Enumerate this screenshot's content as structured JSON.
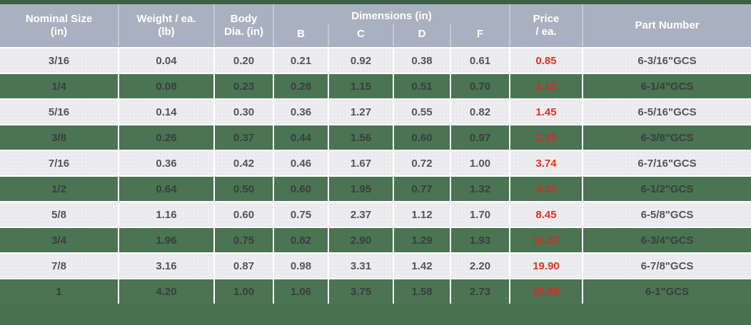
{
  "colors": {
    "accent_green": "#4a7452",
    "header_gray_blue": "#a9b1c0",
    "price_red": "#e53129",
    "row_light": "#ededef",
    "text_dark": "#55545b",
    "top_bar_green": "#3d6044"
  },
  "header": {
    "nominal_size": {
      "line1": "Nominal Size",
      "line2": "(in)"
    },
    "weight": {
      "line1": "Weight / ea.",
      "line2": "(lb)"
    },
    "body_dia": {
      "line1": "Body",
      "line2": "Dia. (in)"
    },
    "dimensions": {
      "label": "Dimensions (in)",
      "sub": [
        "B",
        "C",
        "D",
        "F"
      ]
    },
    "price": {
      "line1": "Price",
      "line2": "/ ea."
    },
    "part_number": "Part Number"
  },
  "table": {
    "rows": [
      {
        "size": "3/16",
        "weight": "0.04",
        "body_dia": "0.20",
        "b": "0.21",
        "c": "0.92",
        "d": "0.38",
        "f": "0.61",
        "price": "0.85",
        "part": "6-3/16\"GCS"
      },
      {
        "size": "1/4",
        "weight": "0.08",
        "body_dia": "0.23",
        "b": "0.28",
        "c": "1.15",
        "d": "0.51",
        "f": "0.70",
        "price": "1.10",
        "part": "6-1/4\"GCS"
      },
      {
        "size": "5/16",
        "weight": "0.14",
        "body_dia": "0.30",
        "b": "0.36",
        "c": "1.27",
        "d": "0.55",
        "f": "0.82",
        "price": "1.45",
        "part": "6-5/16\"GCS"
      },
      {
        "size": "3/8",
        "weight": "0.26",
        "body_dia": "0.37",
        "b": "0.44",
        "c": "1.56",
        "d": "0.60",
        "f": "0.97",
        "price": "2.39",
        "part": "6-3/8\"GCS"
      },
      {
        "size": "7/16",
        "weight": "0.36",
        "body_dia": "0.42",
        "b": "0.46",
        "c": "1.67",
        "d": "0.72",
        "f": "1.00",
        "price": "3.74",
        "part": "6-7/16\"GCS"
      },
      {
        "size": "1/2",
        "weight": "0.64",
        "body_dia": "0.50",
        "b": "0.60",
        "c": "1.95",
        "d": "0.77",
        "f": "1.32",
        "price": "4.30",
        "part": "6-1/2\"GCS"
      },
      {
        "size": "5/8",
        "weight": "1.16",
        "body_dia": "0.60",
        "b": "0.75",
        "c": "2.37",
        "d": "1.12",
        "f": "1.70",
        "price": "8.45",
        "part": "6-5/8\"GCS"
      },
      {
        "size": "3/4",
        "weight": "1.96",
        "body_dia": "0.75",
        "b": "0.82",
        "c": "2.90",
        "d": "1.29",
        "f": "1.93",
        "price": "14.37",
        "part": "6-3/4\"GCS"
      },
      {
        "size": "7/8",
        "weight": "3.16",
        "body_dia": "0.87",
        "b": "0.98",
        "c": "3.31",
        "d": "1.42",
        "f": "2.20",
        "price": "19.90",
        "part": "6-7/8\"GCS"
      },
      {
        "size": "1",
        "weight": "4.20",
        "body_dia": "1.00",
        "b": "1.06",
        "c": "3.75",
        "d": "1.58",
        "f": "2.73",
        "price": "25.88",
        "part": "6-1\"GCS"
      }
    ]
  }
}
